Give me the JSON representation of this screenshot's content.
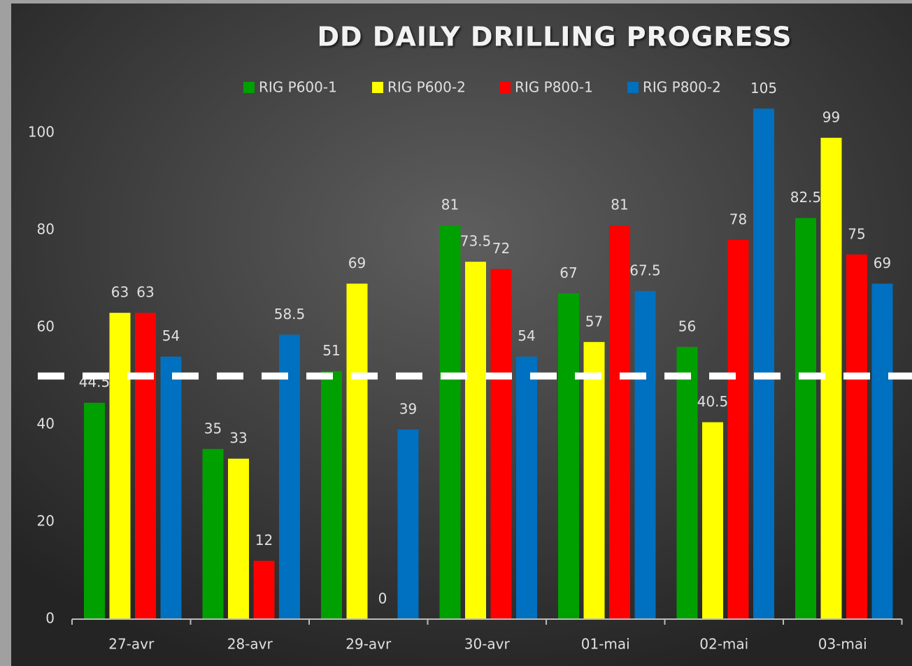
{
  "chart_data": {
    "type": "bar",
    "title": "DD DAILY DRILLING PROGRESS",
    "categories": [
      "27-avr",
      "28-avr",
      "29-avr",
      "30-avr",
      "01-mai",
      "02-mai",
      "03-mai"
    ],
    "series": [
      {
        "name": "RIG P600-1",
        "color": "#00a000",
        "values": [
          44.5,
          35,
          51,
          81,
          67,
          56,
          82.5
        ]
      },
      {
        "name": "RIG P600-2",
        "color": "#ffff00",
        "values": [
          63,
          33,
          69,
          73.5,
          57,
          40.5,
          99
        ]
      },
      {
        "name": "RIG P800-1",
        "color": "#ff0000",
        "values": [
          63,
          12,
          0,
          72,
          81,
          78,
          75
        ]
      },
      {
        "name": "RIG P800-2",
        "color": "#0070c0",
        "values": [
          54,
          58.5,
          39,
          54,
          67.5,
          105,
          69
        ]
      }
    ],
    "ylim": [
      0,
      110
    ],
    "yticks": [
      0,
      20,
      40,
      60,
      80,
      100
    ],
    "reference_line": 50,
    "legend": "top",
    "grid": false
  }
}
